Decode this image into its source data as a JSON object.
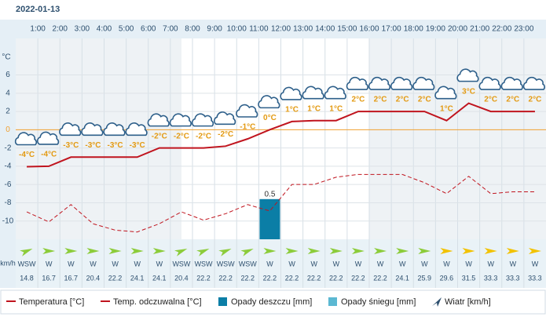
{
  "date": "2022-01-13",
  "chart_data": {
    "type": "line",
    "categories": [
      null,
      "1:00",
      "2:00",
      "3:00",
      "4:00",
      "5:00",
      "6:00",
      "7:00",
      "8:00",
      "9:00",
      "10:00",
      "11:00",
      "12:00",
      "13:00",
      "14:00",
      "15:00",
      "16:00",
      "17:00",
      "18:00",
      "19:00",
      "20:00",
      "21:00",
      "22:00",
      "23:00"
    ],
    "ylabel": "°C",
    "ylim": [
      -12,
      10
    ],
    "yticks": [
      -10,
      -8,
      -6,
      -4,
      -2,
      0,
      2,
      4,
      6
    ],
    "y2lim": [
      0,
      2.5
    ],
    "grid": true,
    "series": [
      {
        "name": "Temperatura [°C]",
        "color": "#c0141e",
        "style": "solid",
        "values": [
          -4.05,
          -4.0,
          -3.0,
          -3.0,
          -3.0,
          -3.0,
          -2.0,
          -2.0,
          -2.0,
          -1.8,
          -1.0,
          0.0,
          0.9,
          1.0,
          1.0,
          2.0,
          2.0,
          2.0,
          2.0,
          1.0,
          2.9,
          2.0,
          2.0,
          2.0
        ],
        "value_labels": [
          "-4°C",
          "-4°C",
          "-3°C",
          "-3°C",
          "-3°C",
          "-3°C",
          "-2°C",
          "-2°C",
          "-2°C",
          "-2°C",
          "-1°C",
          "0°C",
          "1°C",
          "1°C",
          "1°C",
          "2°C",
          "2°C",
          "2°C",
          "2°C",
          "1°C",
          "3°C",
          "2°C",
          "2°C",
          "2°C"
        ]
      },
      {
        "name": "Temp. odczuwalna [°C]",
        "color": "#c0141e",
        "style": "dashed",
        "values": [
          -9.0,
          -10.1,
          -8.2,
          -10.3,
          -11.0,
          -11.2,
          -10.3,
          -9.0,
          -9.9,
          -9.2,
          -8.2,
          -8.9,
          -6.0,
          -6.0,
          -5.2,
          -4.9,
          -4.9,
          -4.9,
          -5.8,
          -7.0,
          -5.1,
          -7.0,
          -6.8,
          -6.8
        ]
      },
      {
        "name": "Opady deszczu [mm]",
        "type": "bar",
        "axis": "y2",
        "color": "#0b7ea6",
        "values": [
          0,
          0,
          0,
          0,
          0,
          0,
          0,
          0,
          0,
          0,
          0,
          0.5,
          0,
          0,
          0,
          0,
          0,
          0,
          0,
          0,
          0,
          0,
          0,
          0
        ]
      },
      {
        "name": "Opady śniegu [mm]",
        "type": "bar",
        "axis": "y2",
        "color": "#5bb8d2",
        "values": [
          0,
          0,
          0,
          0,
          0,
          0,
          0,
          0,
          0,
          0,
          0,
          0,
          0,
          0,
          0,
          0,
          0,
          0,
          0,
          0,
          0,
          0,
          0,
          0
        ]
      }
    ],
    "wind": {
      "name": "Wiatr [km/h]",
      "unit": "km/h",
      "directions": [
        "WSW",
        "W",
        "W",
        "W",
        "W",
        "W",
        "W",
        "WSW",
        "WSW",
        "WSW",
        "WSW",
        "W",
        "W",
        "W",
        "W",
        "W",
        "W",
        "W",
        "W",
        "W",
        "W",
        "W",
        "W",
        "W"
      ],
      "speeds": [
        14.8,
        16.7,
        16.7,
        20.4,
        22.2,
        24.1,
        24.1,
        20.4,
        22.2,
        22.2,
        22.2,
        22.2,
        22.2,
        22.2,
        22.2,
        22.2,
        22.2,
        24.1,
        25.9,
        29.6,
        31.5,
        33.3,
        33.3,
        33.3
      ],
      "colors": [
        "#8ccc3a",
        "#8ccc3a",
        "#8ccc3a",
        "#8ccc3a",
        "#8ccc3a",
        "#8ccc3a",
        "#8ccc3a",
        "#8ccc3a",
        "#8ccc3a",
        "#8ccc3a",
        "#8ccc3a",
        "#8ccc3a",
        "#8ccc3a",
        "#8ccc3a",
        "#8ccc3a",
        "#8ccc3a",
        "#8ccc3a",
        "#8ccc3a",
        "#8ccc3a",
        "#f2c200",
        "#f2c200",
        "#f2c200",
        "#f2c200",
        "#f2c200"
      ]
    }
  }
}
